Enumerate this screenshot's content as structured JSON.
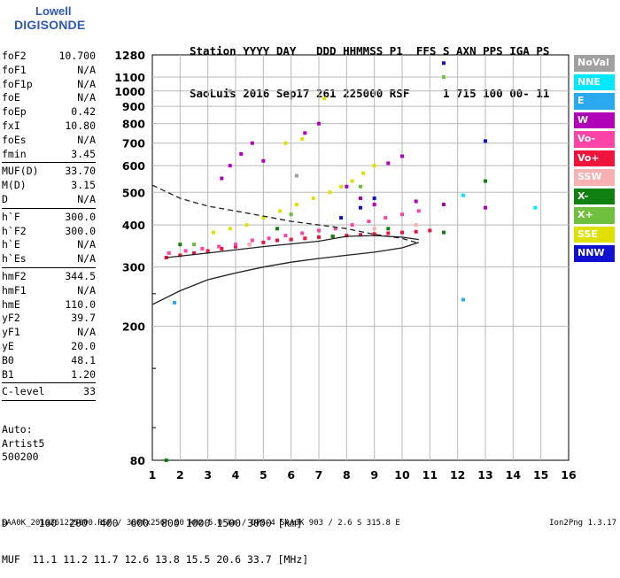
{
  "logo": {
    "top": "Lowell",
    "bottom": "DIGISONDE"
  },
  "header": {
    "line1": "Station YYYY DAY   DDD HHMMSS P1  FFS S AXN PPS IGA PS",
    "line2": "SaoLuis 2016 Sep17 261 225000 RSF     1 715 100 00- 11"
  },
  "params": [
    {
      "k": "foF2",
      "v": "10.700"
    },
    {
      "k": "foF1",
      "v": "N/A"
    },
    {
      "k": "foF1p",
      "v": "N/A"
    },
    {
      "k": "foE",
      "v": "N/A"
    },
    {
      "k": "foEp",
      "v": "0.42"
    },
    {
      "k": "fxI",
      "v": "10.80"
    },
    {
      "k": "foEs",
      "v": "N/A"
    },
    {
      "k": "fmin",
      "v": "3.45",
      "sep": true
    },
    {
      "k": "MUF(D)",
      "v": "33.70"
    },
    {
      "k": "M(D)",
      "v": "3.15"
    },
    {
      "k": "D",
      "v": "N/A",
      "sep": true
    },
    {
      "k": "h`F",
      "v": "300.0"
    },
    {
      "k": "h`F2",
      "v": "300.0"
    },
    {
      "k": "h`E",
      "v": "N/A"
    },
    {
      "k": "h`Es",
      "v": "N/A",
      "sep": true
    },
    {
      "k": "hmF2",
      "v": "344.5"
    },
    {
      "k": "hmF1",
      "v": "N/A"
    },
    {
      "k": "hmE",
      "v": "110.0"
    },
    {
      "k": "yF2",
      "v": "39.7"
    },
    {
      "k": "yF1",
      "v": "N/A"
    },
    {
      "k": "yE",
      "v": "20.0"
    },
    {
      "k": "B0",
      "v": "48.1"
    },
    {
      "k": "B1",
      "v": "1.20",
      "sep": true
    },
    {
      "k": "C-level",
      "v": "33",
      "sep": true
    }
  ],
  "notes": [
    "Auto:",
    "Artist5",
    "500200"
  ],
  "scale": {
    "line1": "D     100  200  400  600  800 1000 1500 3000 [km]",
    "line2": "MUF  11.1 11.2 11.7 12.6 13.8 15.5 20.6 33.7 [MHz]"
  },
  "footer": {
    "left": "SAA0K_2016261225000.RSF / 300fx256h 50 kHz 5.0 km / DPS-4 SAA0K 903 / 2.6 S 315.8 E",
    "right": "Ion2Png 1.3.17"
  },
  "legend": [
    {
      "label": "NoVal",
      "color": "#a0a0a0"
    },
    {
      "label": "NNE",
      "color": "#00e8ff"
    },
    {
      "label": "E",
      "color": "#2aa8f0"
    },
    {
      "label": "W",
      "color": "#b000b8"
    },
    {
      "label": "Vo-",
      "color": "#ff44a8"
    },
    {
      "label": "Vo+",
      "color": "#f0143c"
    },
    {
      "label": "SSW",
      "color": "#f8b0b0"
    },
    {
      "label": "X-",
      "color": "#108010"
    },
    {
      "label": "X+",
      "color": "#70c040"
    },
    {
      "label": "SSE",
      "color": "#e0e000"
    },
    {
      "label": "NNW",
      "color": "#1010d0"
    }
  ],
  "chart_data": {
    "type": "scatter",
    "xlabel": "",
    "ylabel": "",
    "xlim": [
      1,
      16
    ],
    "ylim": [
      80,
      1280
    ],
    "y_scale": "log",
    "x_ticks": [
      1,
      2,
      3,
      4,
      5,
      6,
      7,
      8,
      9,
      10,
      11,
      12,
      13,
      14,
      15,
      16
    ],
    "y_ticks": [
      80,
      200,
      300,
      400,
      500,
      600,
      700,
      800,
      900,
      1000,
      1100,
      1280
    ],
    "grid": true,
    "description_note": "",
    "series": [
      {
        "name": "Vo+",
        "color": "#f0143c",
        "points": [
          [
            1.5,
            320
          ],
          [
            2.0,
            325
          ],
          [
            2.5,
            330
          ],
          [
            3.0,
            335
          ],
          [
            3.5,
            340
          ],
          [
            4.0,
            345
          ],
          [
            4.5,
            350
          ],
          [
            5.0,
            355
          ],
          [
            5.5,
            360
          ],
          [
            6.0,
            362
          ],
          [
            6.5,
            365
          ],
          [
            7.0,
            368
          ],
          [
            7.5,
            370
          ],
          [
            8.0,
            372
          ],
          [
            8.5,
            374
          ],
          [
            9.0,
            376
          ],
          [
            9.5,
            378
          ],
          [
            10.0,
            380
          ],
          [
            10.5,
            382
          ],
          [
            11.0,
            385
          ]
        ]
      },
      {
        "name": "Vo-",
        "color": "#ff44a8",
        "points": [
          [
            1.6,
            330
          ],
          [
            2.2,
            335
          ],
          [
            2.8,
            340
          ],
          [
            3.4,
            345
          ],
          [
            4.0,
            350
          ],
          [
            4.6,
            360
          ],
          [
            5.2,
            365
          ],
          [
            5.8,
            372
          ],
          [
            6.4,
            378
          ],
          [
            7.0,
            385
          ],
          [
            7.6,
            390
          ],
          [
            8.2,
            400
          ],
          [
            8.8,
            410
          ],
          [
            9.4,
            420
          ],
          [
            10.0,
            430
          ],
          [
            10.6,
            440
          ]
        ]
      },
      {
        "name": "SSE",
        "color": "#e0e000",
        "points": [
          [
            3.2,
            380
          ],
          [
            3.8,
            390
          ],
          [
            4.4,
            400
          ],
          [
            5.0,
            420
          ],
          [
            5.6,
            440
          ],
          [
            6.2,
            460
          ],
          [
            6.8,
            480
          ],
          [
            7.4,
            500
          ],
          [
            7.8,
            520
          ],
          [
            8.2,
            540
          ],
          [
            8.6,
            570
          ],
          [
            9.0,
            600
          ],
          [
            5.8,
            700
          ],
          [
            6.4,
            720
          ],
          [
            7.2,
            950
          ]
        ]
      },
      {
        "name": "W",
        "color": "#b000b8",
        "points": [
          [
            3.5,
            550
          ],
          [
            3.8,
            600
          ],
          [
            4.2,
            650
          ],
          [
            4.6,
            700
          ],
          [
            5.0,
            620
          ],
          [
            6.5,
            750
          ],
          [
            7.0,
            800
          ],
          [
            8.0,
            520
          ],
          [
            8.5,
            480
          ],
          [
            9.0,
            460
          ],
          [
            9.5,
            610
          ],
          [
            10.0,
            640
          ],
          [
            10.5,
            470
          ],
          [
            11.5,
            460
          ],
          [
            13.0,
            450
          ]
        ]
      },
      {
        "name": "X-",
        "color": "#108010",
        "points": [
          [
            1.5,
            80
          ],
          [
            2.0,
            350
          ],
          [
            5.5,
            390
          ],
          [
            7.5,
            370
          ],
          [
            9.5,
            390
          ],
          [
            11.5,
            380
          ],
          [
            13.0,
            540
          ]
        ]
      },
      {
        "name": "X+",
        "color": "#70c040",
        "points": [
          [
            2.5,
            350
          ],
          [
            6.0,
            430
          ],
          [
            8.5,
            520
          ],
          [
            11.5,
            1100
          ]
        ]
      },
      {
        "name": "NNW",
        "color": "#1010d0",
        "points": [
          [
            7.8,
            420
          ],
          [
            8.5,
            450
          ],
          [
            9.0,
            480
          ],
          [
            11.5,
            1210
          ],
          [
            13.0,
            710
          ]
        ]
      },
      {
        "name": "NNE",
        "color": "#00e8ff",
        "points": [
          [
            12.2,
            490
          ],
          [
            14.8,
            450
          ]
        ]
      },
      {
        "name": "E",
        "color": "#2aa8f0",
        "points": [
          [
            1.8,
            235
          ],
          [
            12.2,
            240
          ]
        ]
      },
      {
        "name": "SSW",
        "color": "#f8b0b0",
        "points": [
          [
            4.5,
            350
          ],
          [
            9.0,
            390
          ],
          [
            10.5,
            400
          ]
        ]
      },
      {
        "name": "NoVal",
        "color": "#a0a0a0",
        "points": [
          [
            3.8,
            1000
          ],
          [
            6.2,
            560
          ]
        ]
      }
    ],
    "curves": [
      {
        "name": "",
        "style": "dashed",
        "points": [
          [
            1.0,
            525
          ],
          [
            2.0,
            480
          ],
          [
            3.0,
            455
          ],
          [
            4.0,
            440
          ],
          [
            5.0,
            425
          ],
          [
            6.0,
            410
          ],
          [
            7.0,
            400
          ],
          [
            8.0,
            390
          ],
          [
            9.0,
            375
          ],
          [
            10.0,
            365
          ],
          [
            10.5,
            355
          ]
        ]
      },
      {
        "name": "",
        "style": "solid",
        "points": [
          [
            1.0,
            232
          ],
          [
            2.0,
            255
          ],
          [
            3.0,
            275
          ],
          [
            4.0,
            288
          ],
          [
            5.0,
            300
          ],
          [
            6.0,
            310
          ],
          [
            7.0,
            318
          ],
          [
            8.0,
            325
          ],
          [
            9.0,
            332
          ],
          [
            10.0,
            342
          ],
          [
            10.6,
            355
          ]
        ]
      },
      {
        "name": "",
        "style": "solid",
        "points": [
          [
            1.5,
            320
          ],
          [
            3.0,
            330
          ],
          [
            5.0,
            345
          ],
          [
            7.0,
            358
          ],
          [
            8.0,
            370
          ],
          [
            9.0,
            372
          ],
          [
            10.0,
            368
          ],
          [
            10.6,
            362
          ]
        ]
      }
    ]
  }
}
